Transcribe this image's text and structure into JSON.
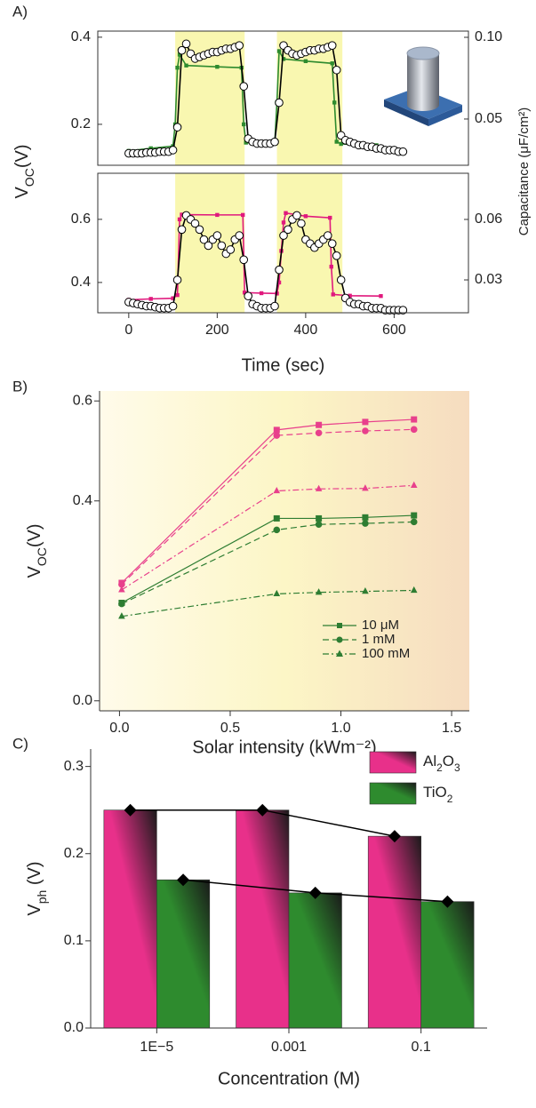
{
  "chart_data": [
    {
      "type": "line",
      "label": "A)",
      "ylabel_parts": [
        "V",
        "OC",
        "(V)"
      ],
      "y2label": "Capacitance (μF/cm²)",
      "xlim": [
        -70,
        768
      ],
      "ylim": [
        0.106,
        0.414
      ],
      "yticks": [
        0.2,
        0.4
      ],
      "y2lim": [
        0.0217,
        0.1038
      ],
      "y2ticks": [
        0.05,
        {
          "value": 0.1,
          "label": "0.10"
        }
      ],
      "ytick_color": "#2e8b2e",
      "shaded": [
        [
          105,
          262
        ],
        [
          335,
          483
        ]
      ],
      "shade_color": "#f9f7b0",
      "series": [
        {
          "color": "#2e8b2e",
          "marker": "square",
          "x": [
            0,
            50,
            100,
            105,
            110,
            115,
            130,
            200,
            255,
            260,
            265,
            300,
            330,
            335,
            340,
            350,
            400,
            460,
            465,
            470,
            480,
            520,
            560
          ],
          "values": [
            0.139,
            0.145,
            0.15,
            0.2,
            0.33,
            0.36,
            0.335,
            0.332,
            0.33,
            0.2,
            0.158,
            0.155,
            0.156,
            0.25,
            0.368,
            0.35,
            0.345,
            0.34,
            0.25,
            0.16,
            0.155,
            0.153,
            0.152
          ]
        },
        {
          "color": "#000000",
          "marker": "open-circle",
          "axis": "y2",
          "x": [
            0,
            10,
            20,
            30,
            40,
            50,
            60,
            70,
            80,
            90,
            100,
            110,
            120,
            130,
            140,
            150,
            160,
            170,
            180,
            190,
            200,
            210,
            220,
            230,
            240,
            250,
            260,
            270,
            280,
            290,
            300,
            310,
            320,
            330,
            340,
            350,
            360,
            370,
            380,
            390,
            400,
            410,
            420,
            430,
            440,
            450,
            460,
            470,
            480,
            490,
            500,
            510,
            520,
            530,
            540,
            550,
            560,
            570,
            580,
            590,
            600,
            610,
            620
          ],
          "values": [
            0.029,
            0.029,
            0.029,
            0.029,
            0.0295,
            0.0295,
            0.0295,
            0.03,
            0.03,
            0.03,
            0.031,
            0.045,
            0.092,
            0.096,
            0.09,
            0.087,
            0.088,
            0.089,
            0.09,
            0.091,
            0.091,
            0.092,
            0.093,
            0.093,
            0.094,
            0.095,
            0.07,
            0.038,
            0.036,
            0.035,
            0.035,
            0.035,
            0.035,
            0.036,
            0.06,
            0.095,
            0.092,
            0.09,
            0.089,
            0.09,
            0.091,
            0.092,
            0.092,
            0.093,
            0.093,
            0.094,
            0.095,
            0.08,
            0.04,
            0.037,
            0.036,
            0.035,
            0.034,
            0.034,
            0.033,
            0.033,
            0.032,
            0.032,
            0.031,
            0.031,
            0.031,
            0.03,
            0.03
          ]
        }
      ]
    },
    {
      "type": "line",
      "xlabel": "Time (sec)",
      "xlim": [
        -70,
        768
      ],
      "xticks": [
        0,
        200,
        400,
        600
      ],
      "ylim": [
        0.304,
        0.746
      ],
      "yticks": [
        0.4,
        0.6
      ],
      "y2lim": [
        0.0137,
        0.0829
      ],
      "y2ticks": [
        0.03,
        0.06
      ],
      "ytick_color": "#e0197d",
      "shaded": [
        [
          105,
          262
        ],
        [
          335,
          483
        ]
      ],
      "shade_color": "#f9f7b0",
      "series": [
        {
          "color": "#e0197d",
          "marker": "square",
          "x": [
            0,
            50,
            100,
            110,
            115,
            120,
            200,
            258,
            262,
            300,
            335,
            340,
            345,
            350,
            355,
            400,
            455,
            458,
            462,
            500,
            570
          ],
          "values": [
            0.345,
            0.348,
            0.35,
            0.36,
            0.6,
            0.615,
            0.614,
            0.614,
            0.368,
            0.366,
            0.365,
            0.4,
            0.5,
            0.59,
            0.62,
            0.61,
            0.605,
            0.45,
            0.362,
            0.358,
            0.357
          ]
        },
        {
          "color": "#000000",
          "marker": "open-circle",
          "axis": "y2",
          "x": [
            0,
            10,
            20,
            30,
            40,
            50,
            60,
            70,
            80,
            90,
            100,
            110,
            120,
            130,
            140,
            150,
            160,
            170,
            180,
            190,
            200,
            210,
            220,
            230,
            240,
            250,
            260,
            270,
            280,
            290,
            300,
            310,
            320,
            330,
            340,
            350,
            360,
            370,
            380,
            390,
            400,
            410,
            420,
            430,
            440,
            450,
            460,
            470,
            480,
            490,
            500,
            510,
            520,
            530,
            540,
            550,
            560,
            570,
            580,
            590,
            600,
            610,
            620
          ],
          "values": [
            0.019,
            0.0185,
            0.018,
            0.0175,
            0.017,
            0.017,
            0.0165,
            0.016,
            0.016,
            0.016,
            0.017,
            0.03,
            0.055,
            0.062,
            0.06,
            0.058,
            0.055,
            0.05,
            0.047,
            0.05,
            0.052,
            0.047,
            0.043,
            0.045,
            0.05,
            0.052,
            0.04,
            0.022,
            0.018,
            0.017,
            0.016,
            0.016,
            0.016,
            0.017,
            0.035,
            0.052,
            0.055,
            0.06,
            0.062,
            0.058,
            0.05,
            0.048,
            0.046,
            0.048,
            0.05,
            0.052,
            0.048,
            0.042,
            0.03,
            0.021,
            0.019,
            0.018,
            0.018,
            0.017,
            0.017,
            0.016,
            0.016,
            0.016,
            0.015,
            0.015,
            0.015,
            0.015,
            0.015
          ]
        }
      ]
    },
    {
      "type": "line",
      "label": "B)",
      "xlabel": "Solar intensity (kWm⁻²)",
      "ylabel_parts": [
        "V",
        "OC",
        "(V)"
      ],
      "x": [
        0.01,
        0.71,
        0.9,
        1.11,
        1.33
      ],
      "xlim": [
        -0.09,
        1.58
      ],
      "xticks": [
        {
          "value": 0,
          "label": "0.0"
        },
        0.5,
        {
          "value": 1,
          "label": "1.0"
        },
        1.5
      ],
      "ylim": [
        -0.02,
        0.62
      ],
      "yticks": [
        {
          "value": 0,
          "label": "0.0"
        },
        0.4,
        0.6
      ],
      "legend": "lower right",
      "series": [
        {
          "color": "#e8408c",
          "marker": "square",
          "dash": "solid",
          "values": [
            0.236,
            0.542,
            0.552,
            0.558,
            0.563
          ]
        },
        {
          "color": "#e8408c",
          "marker": "circle",
          "dash": "dashed",
          "values": [
            0.233,
            0.531,
            0.536,
            0.54,
            0.543
          ]
        },
        {
          "color": "#e8408c",
          "marker": "triangle",
          "dash": "dashdot",
          "values": [
            0.222,
            0.42,
            0.424,
            0.425,
            0.431
          ]
        },
        {
          "name": "10 μM",
          "color": "#2e7d32",
          "marker": "square",
          "dash": "solid",
          "values": [
            0.196,
            0.365,
            0.365,
            0.367,
            0.371
          ]
        },
        {
          "name": "1 mM",
          "color": "#2e7d32",
          "marker": "circle",
          "dash": "dashed",
          "values": [
            0.194,
            0.342,
            0.353,
            0.355,
            0.358
          ]
        },
        {
          "name": "100 mM",
          "color": "#2e7d32",
          "marker": "triangle",
          "dash": "dashdot",
          "values": [
            0.169,
            0.214,
            0.217,
            0.219,
            0.221
          ]
        }
      ]
    },
    {
      "type": "bar",
      "label": "C)",
      "xlabel": "Concentration (M)",
      "ylabel_parts": [
        "V",
        "ph",
        " (V)"
      ],
      "categories": [
        "1E−5",
        "0.001",
        "0.1"
      ],
      "ylim": [
        0,
        0.32
      ],
      "yticks": [
        {
          "value": 0,
          "label": "0.0"
        },
        0.1,
        0.2,
        0.3
      ],
      "marker": "diamond",
      "line_color": "#000000",
      "legend": "upper right",
      "series": [
        {
          "name_parts": [
            "Al",
            "2",
            "O",
            "3"
          ],
          "color": "#e8308a",
          "values": [
            0.25,
            0.25,
            0.22
          ]
        },
        {
          "name_parts": [
            "TiO",
            "2"
          ],
          "color": "#2e8b2e",
          "values": [
            0.17,
            0.155,
            0.145
          ]
        }
      ]
    }
  ]
}
